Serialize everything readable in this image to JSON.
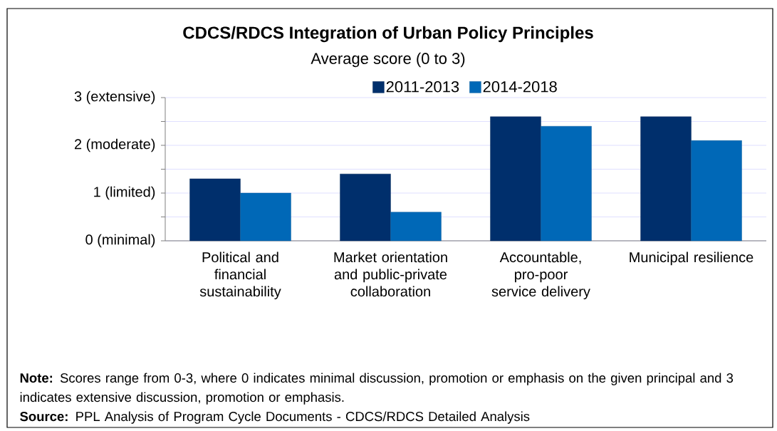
{
  "chart_data": {
    "type": "bar",
    "title": "CDCS/RDCS Integration of Urban Policy Principles",
    "subtitle": "Average score (0 to 3)",
    "categories": [
      "Political and financial sustainability",
      "Market orientation and public-private collaboration",
      "Accountable, pro-poor service delivery",
      "Municipal resilience"
    ],
    "series": [
      {
        "name": "2011-2013",
        "color": "#002f6c",
        "values": [
          1.3,
          1.4,
          2.6,
          2.6
        ]
      },
      {
        "name": "2014-2018",
        "color": "#0068b7",
        "values": [
          1.0,
          0.6,
          2.4,
          2.1
        ]
      }
    ],
    "ylim": [
      0,
      3
    ],
    "yticks": [
      {
        "value": 0,
        "label": "0 (minimal)"
      },
      {
        "value": 0.5,
        "label": null
      },
      {
        "value": 1,
        "label": "1 (limited)"
      },
      {
        "value": 1.5,
        "label": null
      },
      {
        "value": 2,
        "label": "2 (moderate)"
      },
      {
        "value": 2.5,
        "label": null
      },
      {
        "value": 3,
        "label": "3 (extensive)"
      }
    ],
    "grid": "y",
    "legend": "top",
    "annotations": [
      "**Note:** Scores range from 0-3, where 0 indicates minimal discussion, promotion or emphasis on the given principal and 3 indicates extensive discussion, promotion or emphasis.",
      "**Source:** PPL Analysis of Program Cycle Documents - CDCS/RDCS Detailed Analysis"
    ]
  }
}
